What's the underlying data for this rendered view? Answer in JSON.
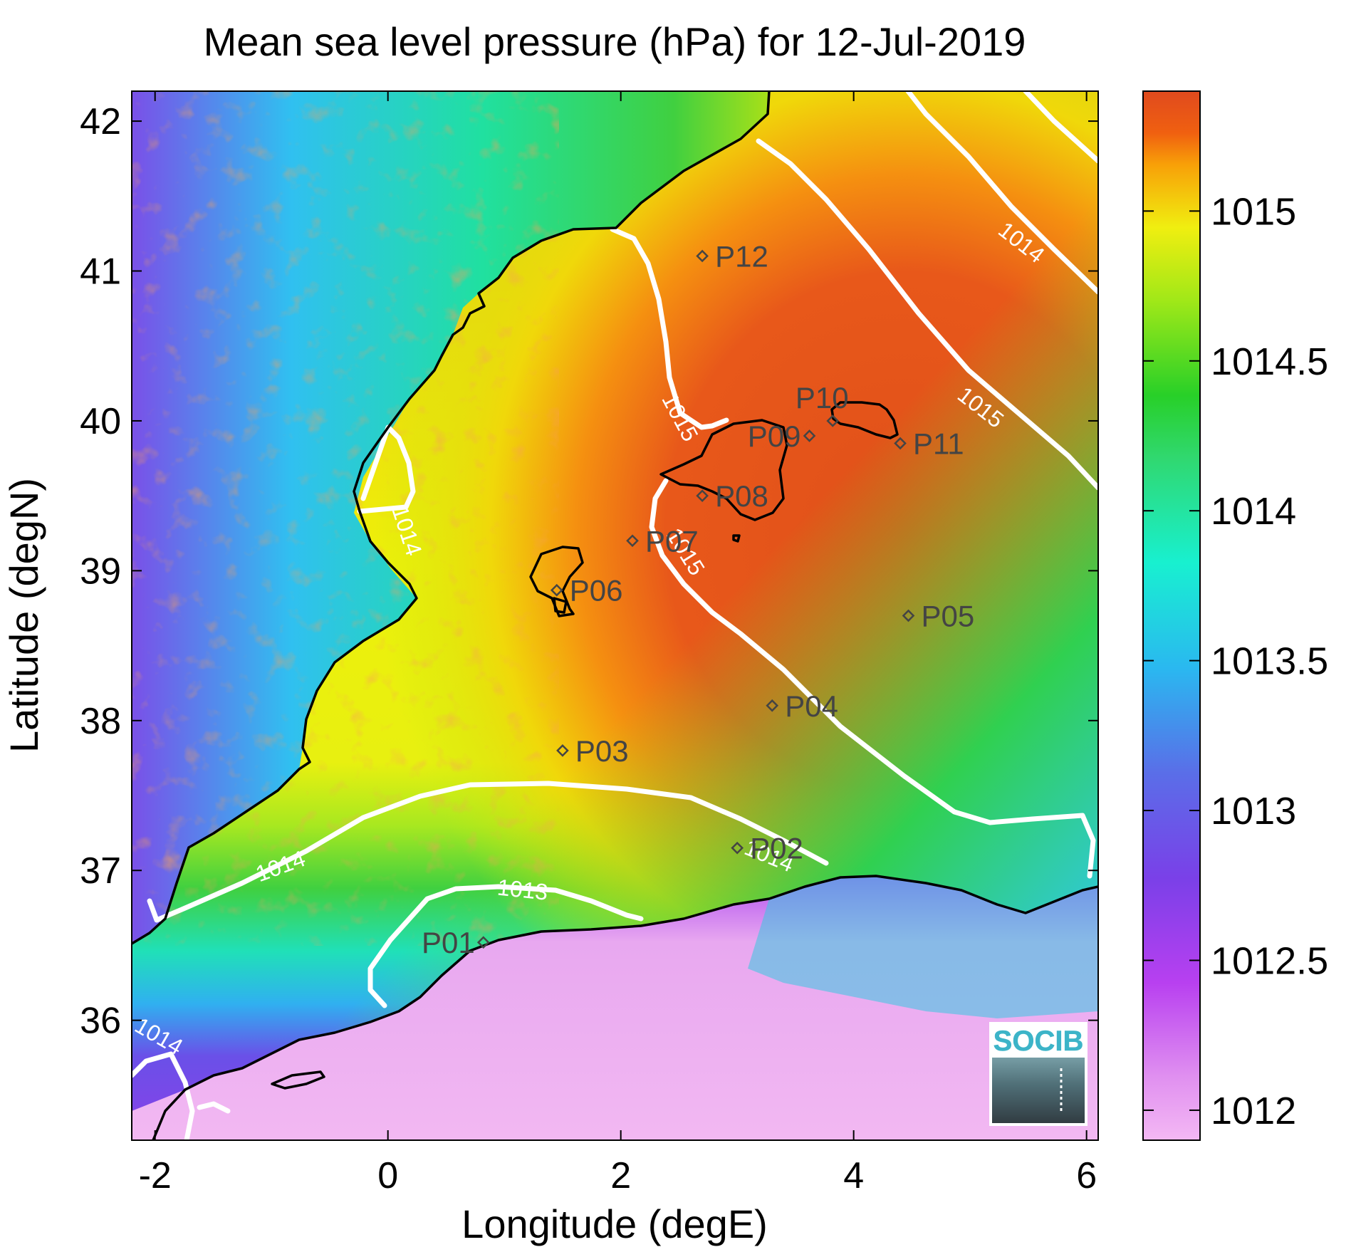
{
  "title": "Mean sea level pressure (hPa) for 12-Jul-2019",
  "xlabel": "Longitude (degE)",
  "ylabel": "Latitude (degN)",
  "colors": {
    "high": "#e0501a",
    "orange": "#f5a20a",
    "yellow": "#eef00a",
    "green": "#2ccc2c",
    "cyan": "#20e8d8",
    "blue": "#3a88f0",
    "purple": "#7a40e8",
    "pink": "#f0b4f0",
    "contour": "#ffffff",
    "coast": "#000000",
    "logo_text": "#3cb4c8"
  },
  "chart_data": {
    "type": "heatmap",
    "x_range": [
      -2.2,
      6.1
    ],
    "y_range": [
      35.2,
      42.2
    ],
    "x_ticks": [
      {
        "value": -2,
        "label": "-2"
      },
      {
        "value": 0,
        "label": "0"
      },
      {
        "value": 2,
        "label": "2"
      },
      {
        "value": 4,
        "label": "4"
      },
      {
        "value": 6,
        "label": "6"
      }
    ],
    "y_ticks": [
      {
        "value": 36,
        "label": "36"
      },
      {
        "value": 37,
        "label": "37"
      },
      {
        "value": 38,
        "label": "38"
      },
      {
        "value": 39,
        "label": "39"
      },
      {
        "value": 40,
        "label": "40"
      },
      {
        "value": 41,
        "label": "41"
      },
      {
        "value": 42,
        "label": "42"
      }
    ],
    "colorbar": {
      "range": [
        1011.9,
        1015.4
      ],
      "ticks": [
        {
          "value": 1012,
          "label": "1012"
        },
        {
          "value": 1012.5,
          "label": "1012.5"
        },
        {
          "value": 1013,
          "label": "1013"
        },
        {
          "value": 1013.5,
          "label": "1013.5"
        },
        {
          "value": 1014,
          "label": "1014"
        },
        {
          "value": 1014.5,
          "label": "1014.5"
        },
        {
          "value": 1015,
          "label": "1015"
        }
      ]
    },
    "stations": [
      {
        "name": "P01",
        "lon": 0.82,
        "lat": 36.52,
        "side": "left"
      },
      {
        "name": "P02",
        "lon": 3.0,
        "lat": 37.15,
        "side": "right"
      },
      {
        "name": "P03",
        "lon": 1.5,
        "lat": 37.8,
        "side": "right"
      },
      {
        "name": "P04",
        "lon": 3.3,
        "lat": 38.1,
        "side": "right"
      },
      {
        "name": "P05",
        "lon": 4.47,
        "lat": 38.7,
        "side": "right"
      },
      {
        "name": "P06",
        "lon": 1.45,
        "lat": 38.87,
        "side": "right"
      },
      {
        "name": "P07",
        "lon": 2.1,
        "lat": 39.2,
        "side": "right"
      },
      {
        "name": "P08",
        "lon": 2.7,
        "lat": 39.5,
        "side": "right"
      },
      {
        "name": "P09",
        "lon": 3.62,
        "lat": 39.9,
        "side": "left"
      },
      {
        "name": "P10",
        "lon": 3.82,
        "lat": 40.0,
        "side": "above"
      },
      {
        "name": "P11",
        "lon": 4.4,
        "lat": 39.85,
        "side": "right"
      },
      {
        "name": "P12",
        "lon": 2.7,
        "lat": 41.1,
        "side": "right"
      }
    ],
    "contour_labels": [
      {
        "text": "1014",
        "lon": 5.4,
        "lat": 41.15,
        "angle": 38
      },
      {
        "text": "1015",
        "lon": 5.05,
        "lat": 40.05,
        "angle": 38
      },
      {
        "text": "1015",
        "lon": 2.45,
        "lat": 40.0,
        "angle": 62
      },
      {
        "text": "1015",
        "lon": 2.5,
        "lat": 39.1,
        "angle": 58
      },
      {
        "text": "1014",
        "lon": 0.1,
        "lat": 39.25,
        "angle": 72
      },
      {
        "text": "1014",
        "lon": -0.9,
        "lat": 36.98,
        "angle": -20
      },
      {
        "text": "1013",
        "lon": 1.15,
        "lat": 36.82,
        "angle": 6
      },
      {
        "text": "1014",
        "lon": 3.25,
        "lat": 37.05,
        "angle": 22
      },
      {
        "text": "1014",
        "lon": -2.0,
        "lat": 35.85,
        "angle": 30
      }
    ],
    "logo": "SOCIB",
    "grid": false
  }
}
